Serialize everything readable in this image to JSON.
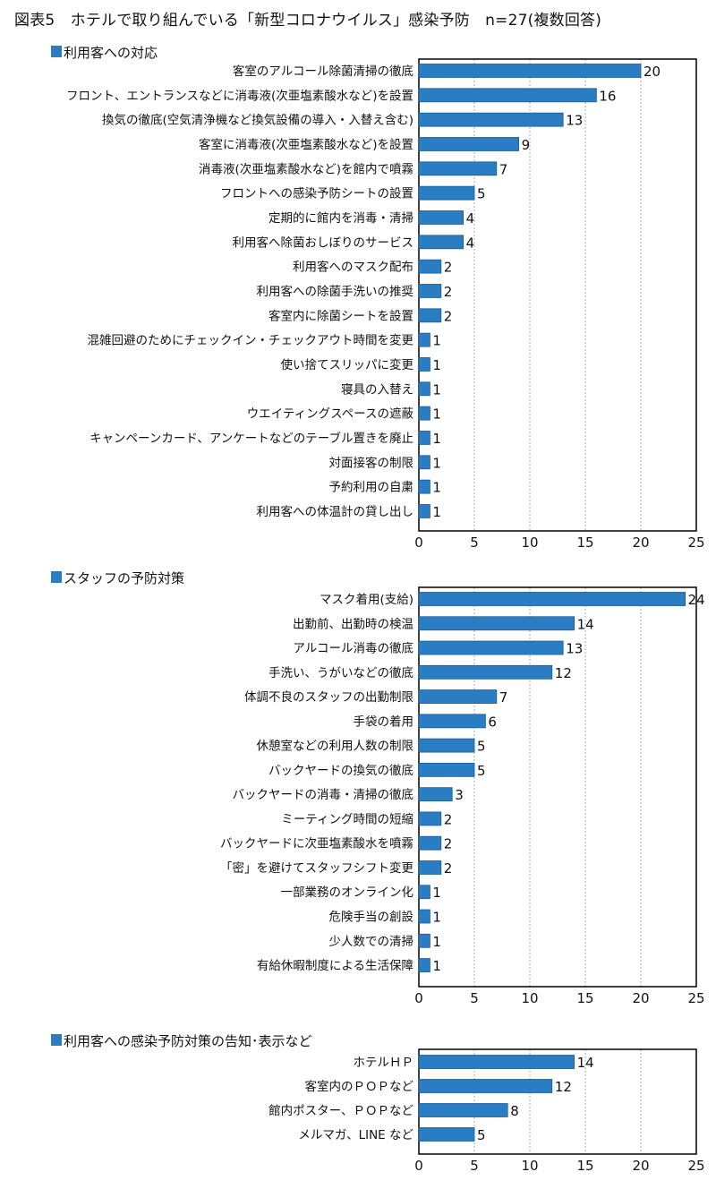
{
  "title": "図表5　ホテルで取り組んでいる「新型コロナウイルス」感染予防　n=27(複数回答)",
  "colors": {
    "bar": "#2a7dc2",
    "bar_edge": "#1d5d94",
    "section_marker": "#2a7dc2"
  },
  "chart_data": [
    {
      "type": "bar",
      "orientation": "horizontal",
      "title": "利用客への対応",
      "categories": [
        "客室のアルコール除菌清掃の徹底",
        "フロント、エントランスなどに消毒液(次亜塩素酸水など)を設置",
        "換気の徹底(空気清浄機など換気設備の導入・入替え含む)",
        "客室に消毒液(次亜塩素酸水など)を設置",
        "消毒液(次亜塩素酸水など)を館内で噴霧",
        "フロントへの感染予防シートの設置",
        "定期的に館内を消毒・清掃",
        "利用客へ除菌おしぼりのサービス",
        "利用客へのマスク配布",
        "利用客への除菌手洗いの推奨",
        "客室内に除菌シートを設置",
        "混雑回避のためにチェックイン・チェックアウト時間を変更",
        "使い捨てスリッパに変更",
        "寝具の入替え",
        "ウエイティングスペースの遮蔽",
        "キャンペーンカード、アンケートなどのテーブル置きを廃止",
        "対面接客の制限",
        "予約利用の自粛",
        "利用客への体温計の貸し出し"
      ],
      "values": [
        20,
        16,
        13,
        9,
        7,
        5,
        4,
        4,
        2,
        2,
        2,
        1,
        1,
        1,
        1,
        1,
        1,
        1,
        1
      ],
      "xlim": [
        0,
        25
      ],
      "xticks": [
        "0",
        "5",
        "10",
        "15",
        "20",
        "25"
      ],
      "grid": true
    },
    {
      "type": "bar",
      "orientation": "horizontal",
      "title": "スタッフの予防対策",
      "categories": [
        "マスク着用(支給)",
        "出勤前、出勤時の検温",
        "アルコール消毒の徹底",
        "手洗い、うがいなどの徹底",
        "体調不良のスタッフの出勤制限",
        "手袋の着用",
        "休憩室などの利用人数の制限",
        "バックヤードの換気の徹底",
        "バックヤードの消毒・清掃の徹底",
        "ミーティング時間の短縮",
        "バックヤードに次亜塩素酸水を噴霧",
        "「密」を避けてスタッフシフト変更",
        "一部業務のオンライン化",
        "危険手当の創設",
        "少人数での清掃",
        "有給休暇制度による生活保障"
      ],
      "values": [
        24,
        14,
        13,
        12,
        7,
        6,
        5,
        5,
        3,
        2,
        2,
        2,
        1,
        1,
        1,
        1
      ],
      "xlim": [
        0,
        25
      ],
      "xticks": [
        "0",
        "5",
        "10",
        "15",
        "20",
        "25"
      ],
      "grid": true
    },
    {
      "type": "bar",
      "orientation": "horizontal",
      "title": "利用客への感染予防対策の告知･表示など",
      "categories": [
        "ホテルＨＰ",
        "客室内のＰＯＰなど",
        "館内ポスター、ＰＯＰなど",
        "メルマガ、LINE など"
      ],
      "values": [
        14,
        12,
        8,
        5
      ],
      "xlim": [
        0,
        25
      ],
      "xticks": [
        "0",
        "5",
        "10",
        "15",
        "20",
        "25"
      ],
      "grid": true
    }
  ]
}
